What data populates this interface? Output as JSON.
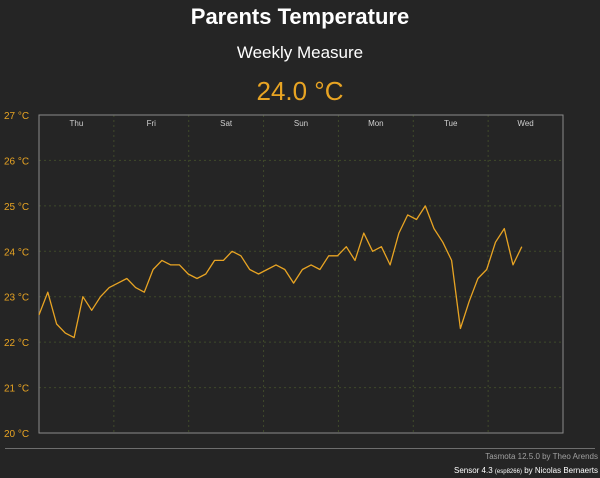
{
  "page": {
    "title": "Parents Temperature",
    "subtitle": "Weekly Measure",
    "current_value": "24.0 °C"
  },
  "footer": {
    "firmware": "Tasmota 12.5.0 by Theo Arends",
    "sensor_prefix": "Sensor 4.3",
    "sensor_chip": "(esp8266)",
    "sensor_suffix": "by Nicolas Bernaerts"
  },
  "colors": {
    "background": "#252525",
    "accent": "#e8a423",
    "grid": "#3f4a2a",
    "frame": "#8a8a8a",
    "day_label": "#cfcfcf"
  },
  "chart_data": {
    "type": "line",
    "series": [
      {
        "values": [
          22.6,
          23.1,
          22.4,
          22.2,
          22.1,
          23.0,
          22.7,
          23.0,
          23.2,
          23.3,
          23.4,
          23.2,
          23.1,
          23.6,
          23.8,
          23.7,
          23.7,
          23.5,
          23.4,
          23.5,
          23.8,
          23.8,
          24.0,
          23.9,
          23.6,
          23.5,
          23.6,
          23.7,
          23.6,
          23.3,
          23.6,
          23.7,
          23.6,
          23.9,
          23.9,
          24.1,
          23.8,
          24.4,
          24.0,
          24.1,
          23.7,
          24.4,
          24.8,
          24.7,
          25.0,
          24.5,
          24.2,
          23.8,
          22.3,
          22.9,
          23.4,
          23.6,
          24.2,
          24.5,
          23.7,
          24.1
        ],
        "x_start_day": 0.0,
        "x_end_day": 6.45
      }
    ],
    "x_tick_labels": [
      "Thu",
      "Fri",
      "Sat",
      "Sun",
      "Mon",
      "Tue",
      "Wed"
    ],
    "y_tick_labels": [
      "20 °C",
      "21 °C",
      "22 °C",
      "23 °C",
      "24 °C",
      "25 °C",
      "26 °C",
      "27 °C"
    ],
    "ylim": [
      20,
      27
    ],
    "y_unit": "°C",
    "grid": true
  }
}
